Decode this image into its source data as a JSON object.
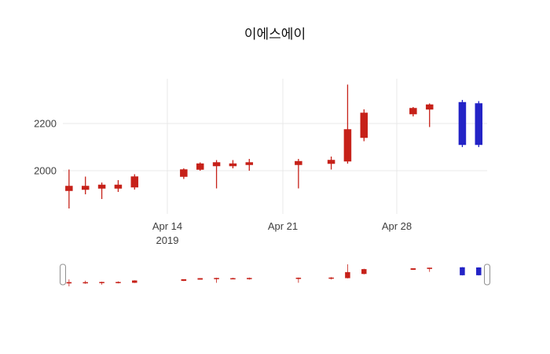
{
  "title": "이에스에이",
  "y_axis": {
    "ticks": [
      {
        "label": "2000",
        "value": 2000
      },
      {
        "label": "2200",
        "value": 2200
      }
    ]
  },
  "x_axis": {
    "ticks": [
      {
        "label": "Apr 14",
        "sublabel": "2019",
        "date": "2019-04-14"
      },
      {
        "label": "Apr 21",
        "sublabel": "",
        "date": "2019-04-21"
      },
      {
        "label": "Apr 28",
        "sublabel": "",
        "date": "2019-04-28"
      }
    ]
  },
  "colors": {
    "increasing": "#c62119",
    "decreasing": "#2323c6",
    "grid": "#e9e9e9",
    "axis_text": "#3f3f3f",
    "title_text": "#111111",
    "handle_border": "#8f8f8f",
    "background": "#ffffff"
  },
  "rangeslider": {
    "visible": true
  },
  "chart_data": {
    "type": "candlestick",
    "title": "이에스에이",
    "xlabel": "",
    "ylabel": "",
    "ylim": [
      1817,
      2390
    ],
    "grid": true,
    "x": [
      "2019-04-08",
      "2019-04-09",
      "2019-04-10",
      "2019-04-11",
      "2019-04-12",
      "2019-04-15",
      "2019-04-16",
      "2019-04-17",
      "2019-04-18",
      "2019-04-19",
      "2019-04-22",
      "2019-04-24",
      "2019-04-25",
      "2019-04-26",
      "2019-04-29",
      "2019-04-30",
      "2019-05-02",
      "2019-05-03"
    ],
    "open": [
      1915,
      1920,
      1925,
      1925,
      1930,
      1975,
      2005,
      2020,
      2020,
      2025,
      2025,
      2030,
      2040,
      2140,
      2240,
      2260,
      2290,
      2285
    ],
    "high": [
      2005,
      1975,
      1950,
      1960,
      1985,
      2010,
      2035,
      2045,
      2045,
      2050,
      2050,
      2060,
      2365,
      2260,
      2270,
      2285,
      2300,
      2295
    ],
    "low": [
      1840,
      1900,
      1880,
      1910,
      1920,
      1965,
      2000,
      1925,
      2010,
      2000,
      1925,
      2005,
      2030,
      2125,
      2230,
      2185,
      2100,
      2100
    ],
    "close": [
      1935,
      1935,
      1940,
      1940,
      1975,
      2005,
      2030,
      2035,
      2030,
      2035,
      2040,
      2045,
      2175,
      2245,
      2265,
      2280,
      2110,
      2110
    ],
    "increasing_color": "#c62119",
    "decreasing_color": "#2323c6",
    "y_ticks": [
      2000,
      2200
    ],
    "x_tick_labels": [
      "Apr 14 2019",
      "Apr 21",
      "Apr 28"
    ],
    "legend": "off",
    "rangeslider": true
  }
}
